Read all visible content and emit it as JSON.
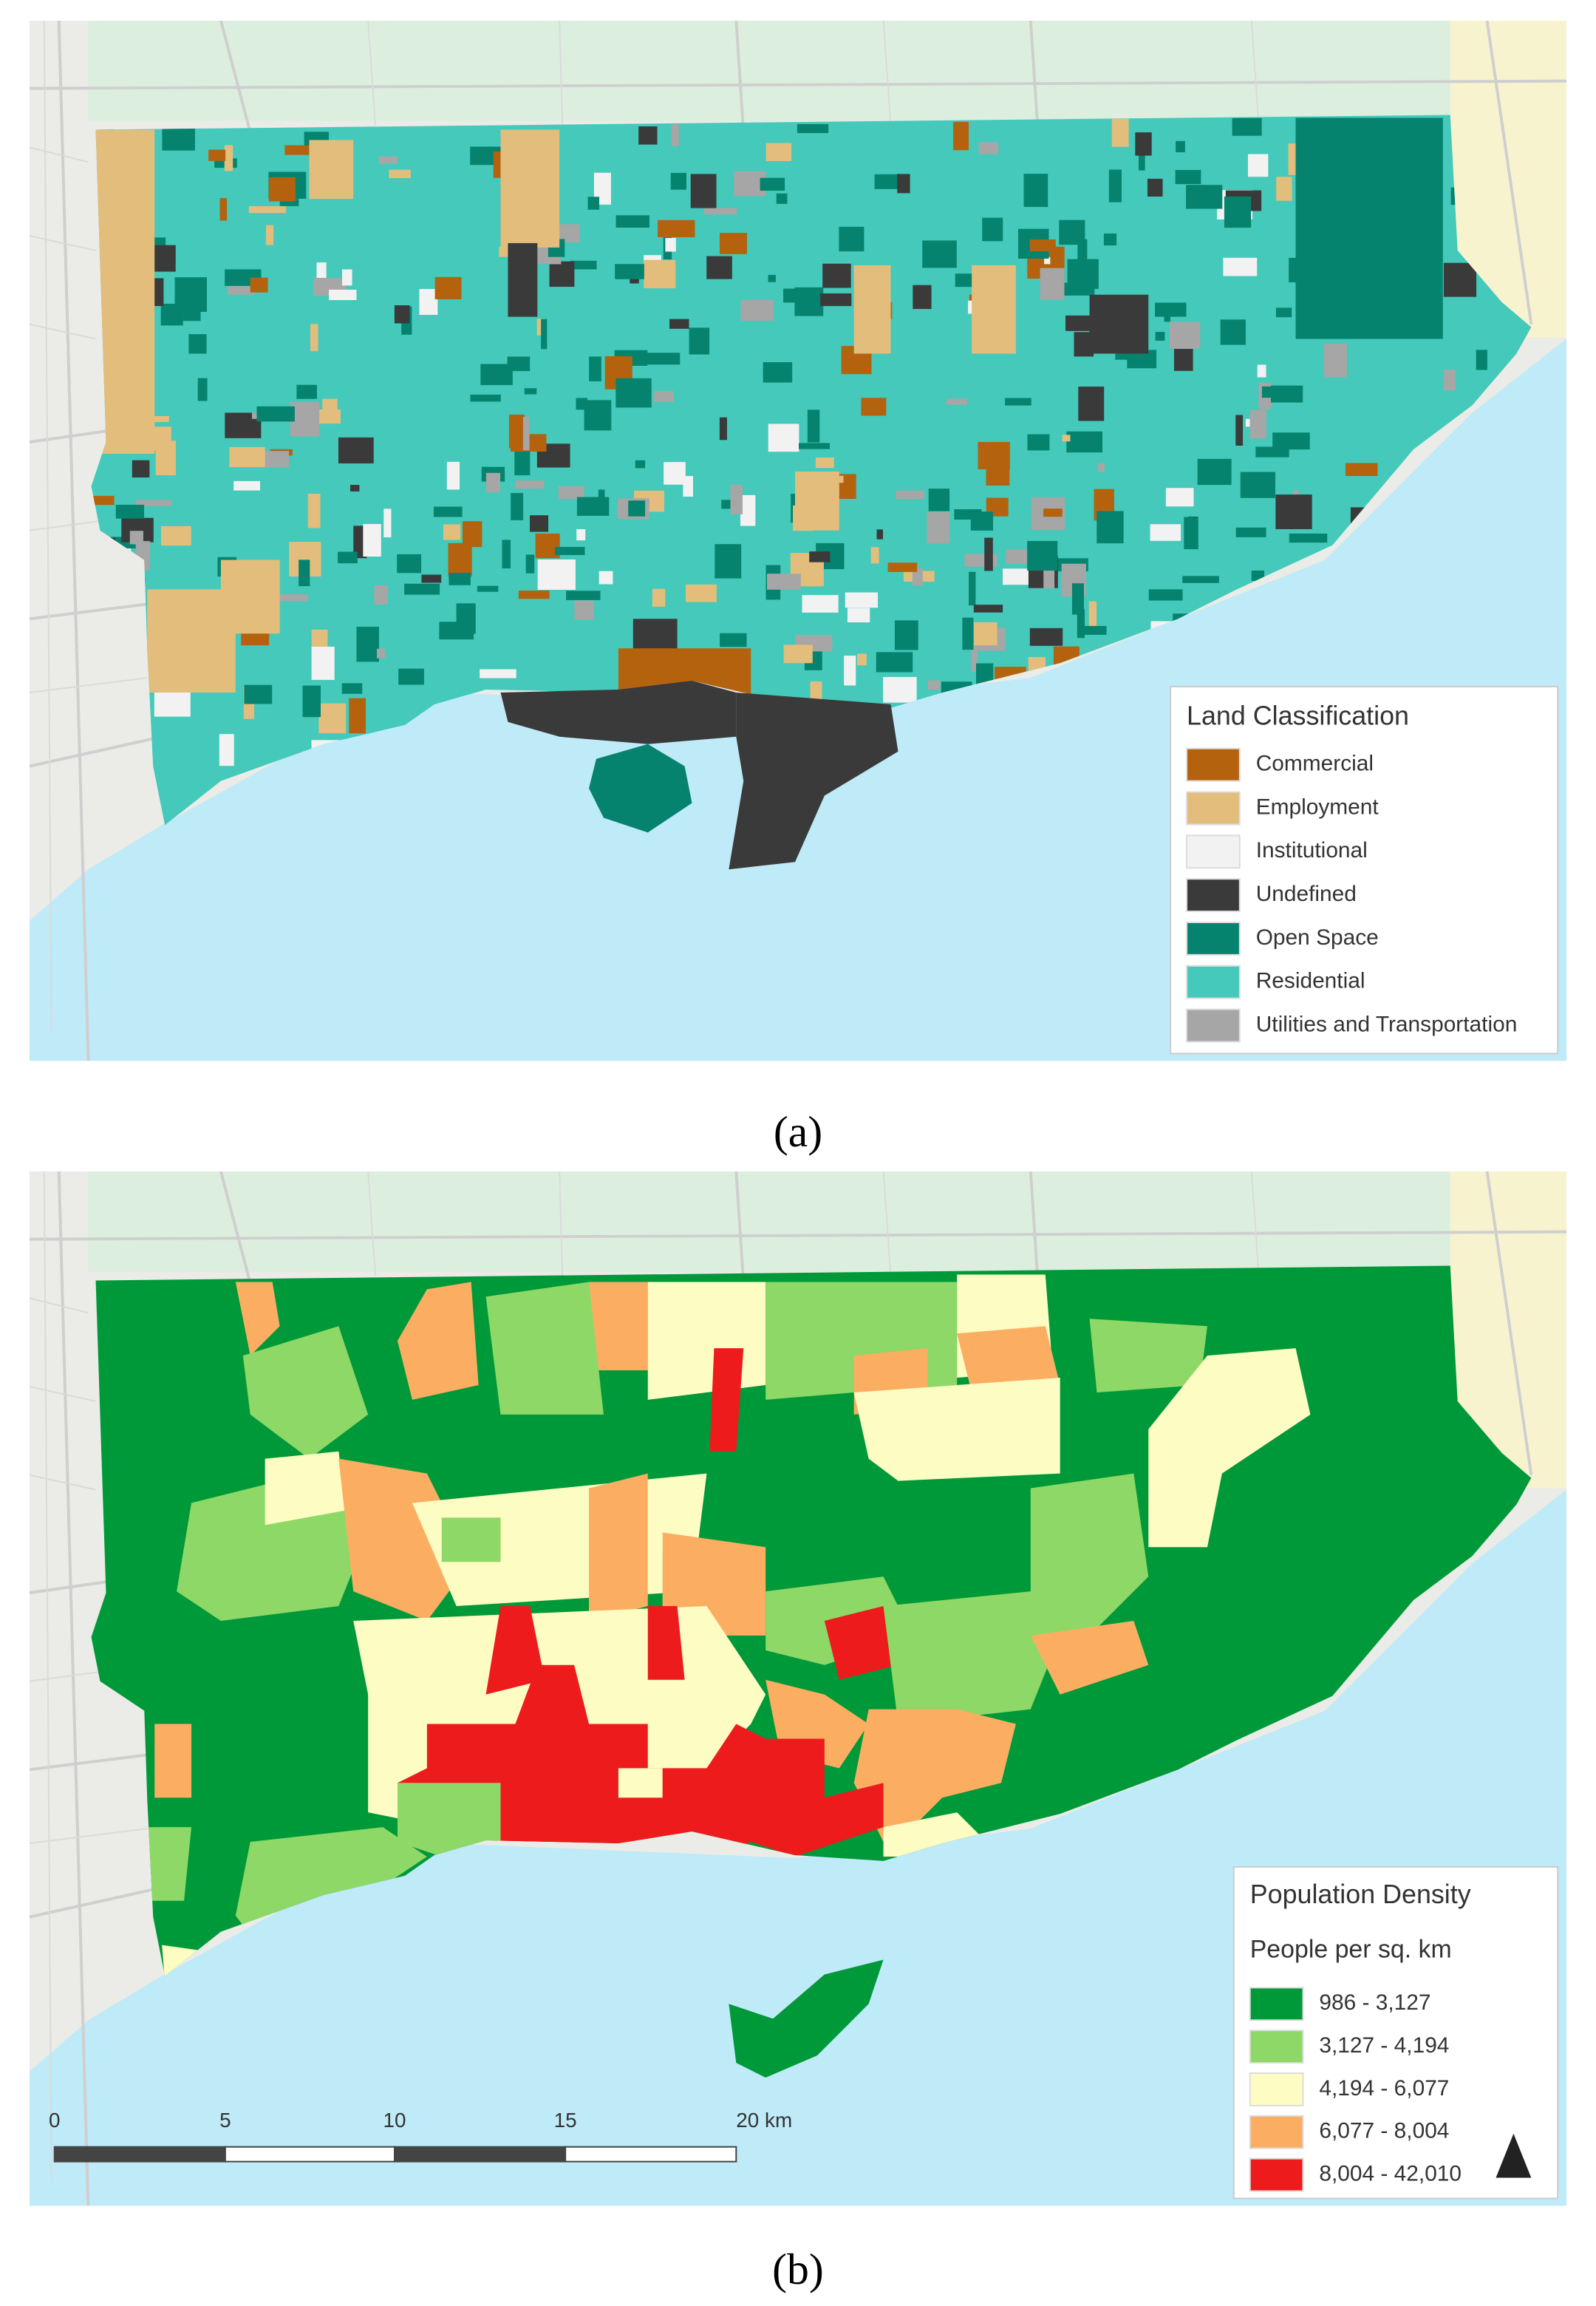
{
  "panel_a": {
    "caption": "(a)",
    "legend": {
      "title": "Land Classification",
      "items": [
        {
          "label": "Commercial",
          "color": "#b5620f"
        },
        {
          "label": "Employment",
          "color": "#e3bd7c"
        },
        {
          "label": "Institutional",
          "color": "#f2f2f2"
        },
        {
          "label": "Undefined",
          "color": "#3a3a3a"
        },
        {
          "label": "Open Space",
          "color": "#05836e"
        },
        {
          "label": "Residential",
          "color": "#44c9bb"
        },
        {
          "label": "Utilities and Transportation",
          "color": "#a6a6a6"
        }
      ]
    }
  },
  "panel_b": {
    "caption": "(b)",
    "legend": {
      "title": "Population Density",
      "subtitle": "People per sq. km",
      "items": [
        {
          "label": "986 - 3,127",
          "color": "#00993a"
        },
        {
          "label": "3,127 - 4,194",
          "color": "#8dd866"
        },
        {
          "label": "4,194 - 6,077",
          "color": "#fdfcc2"
        },
        {
          "label": "6,077 - 8,004",
          "color": "#fbae62"
        },
        {
          "label": "8,004 - 42,010",
          "color": "#ee1b1d"
        }
      ]
    },
    "scale_bar": [
      "0",
      "5",
      "10",
      "15",
      "20 km"
    ]
  }
}
